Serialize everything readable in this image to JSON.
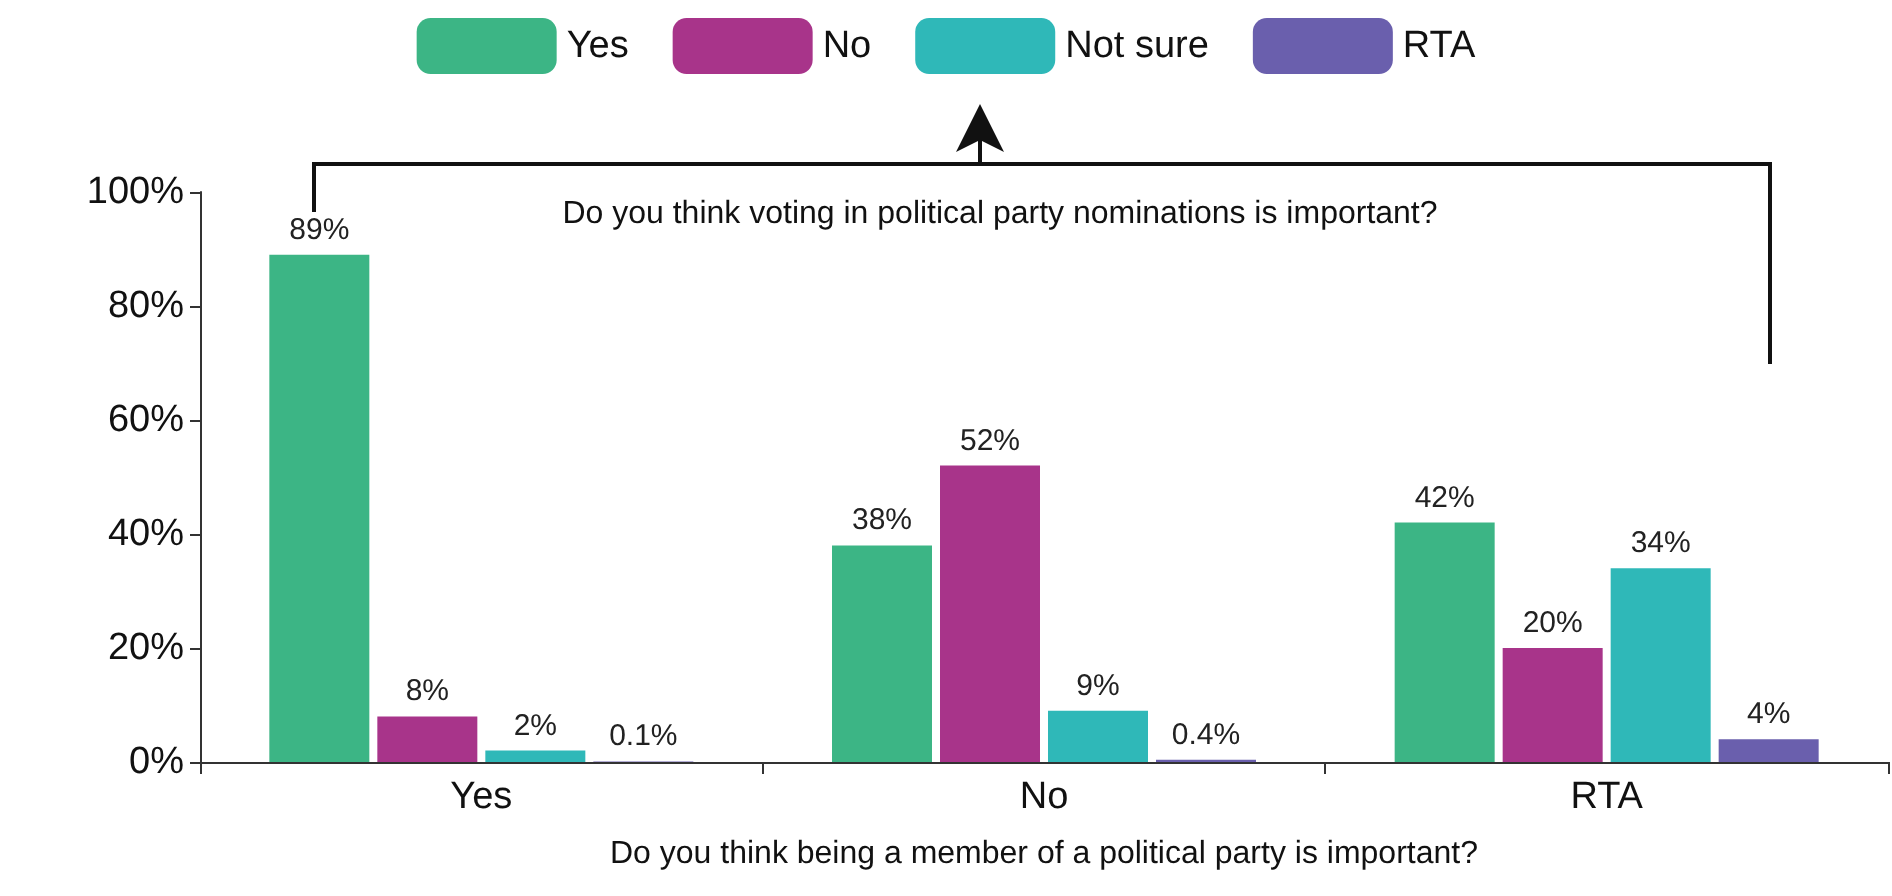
{
  "chart_data": {
    "type": "bar",
    "legend_title": "Do you think voting in political party nominations is important?",
    "xlabel": "Do you think being a member of a political party is important?",
    "categories": [
      "Yes",
      "No",
      "RTA"
    ],
    "series": [
      {
        "name": "Yes",
        "color": "#3cb585",
        "values": [
          89,
          38,
          42
        ],
        "value_labels": [
          "89%",
          "38%",
          "42%"
        ]
      },
      {
        "name": "No",
        "color": "#a8348a",
        "values": [
          8,
          52,
          20
        ],
        "value_labels": [
          "8%",
          "52%",
          "20%"
        ]
      },
      {
        "name": "Not sure",
        "color": "#2fb8b8",
        "values": [
          2,
          9,
          34
        ],
        "value_labels": [
          "2%",
          "9%",
          "34%"
        ]
      },
      {
        "name": "RTA",
        "color": "#6a5fad",
        "values": [
          0.1,
          0.4,
          4
        ],
        "value_labels": [
          "0.1%",
          "0.4%",
          "4%"
        ]
      }
    ],
    "ylim": [
      0,
      100
    ],
    "yticks": [
      {
        "value": 0,
        "label": "0%"
      },
      {
        "value": 20,
        "label": "20%"
      },
      {
        "value": 40,
        "label": "40%"
      },
      {
        "value": 60,
        "label": "60%"
      },
      {
        "value": 80,
        "label": "80%"
      },
      {
        "value": 100,
        "label": "100%"
      }
    ],
    "grid": false,
    "legend": "top"
  }
}
